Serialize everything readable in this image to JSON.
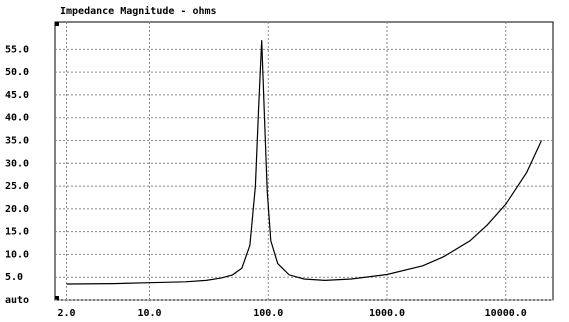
{
  "chart_data": {
    "type": "line",
    "title": "Impedance Magnitude - ohms",
    "x": [
      2,
      5,
      10,
      20,
      30,
      40,
      50,
      60,
      70,
      78,
      83,
      88,
      93,
      98,
      105,
      120,
      150,
      200,
      300,
      500,
      1000,
      2000,
      3000,
      5000,
      7000,
      10000,
      15000,
      20000
    ],
    "series": [
      {
        "name": "Impedance",
        "color": "#000000",
        "values": [
          3.5,
          3.6,
          3.8,
          4.0,
          4.3,
          4.8,
          5.5,
          7,
          12,
          25,
          42,
          57,
          40,
          24,
          13,
          8,
          5.5,
          4.6,
          4.3,
          4.6,
          5.6,
          7.5,
          9.5,
          13,
          16.5,
          21,
          28,
          35
        ]
      }
    ],
    "xlim": [
      1.6,
      25000
    ],
    "xscale": "log",
    "xticks": [
      {
        "value": 2,
        "label": "2.0"
      },
      {
        "value": 10,
        "label": "10.0"
      },
      {
        "value": 100,
        "label": "100.0"
      },
      {
        "value": 1000,
        "label": "1000.0"
      },
      {
        "value": 10000,
        "label": "10000.0"
      }
    ],
    "ylim": [
      0,
      61
    ],
    "yticks": [
      {
        "value": 0,
        "label": "auto"
      },
      {
        "value": 5,
        "label": "5.0"
      },
      {
        "value": 10,
        "label": "10.0"
      },
      {
        "value": 15,
        "label": "15.0"
      },
      {
        "value": 20,
        "label": "20.0"
      },
      {
        "value": 25,
        "label": "25.0"
      },
      {
        "value": 30,
        "label": "30.0"
      },
      {
        "value": 35,
        "label": "35.0"
      },
      {
        "value": 40,
        "label": "40.0"
      },
      {
        "value": 45,
        "label": "45.0"
      },
      {
        "value": 50,
        "label": "50.0"
      },
      {
        "value": 55,
        "label": "55.0"
      }
    ],
    "grid": true
  }
}
